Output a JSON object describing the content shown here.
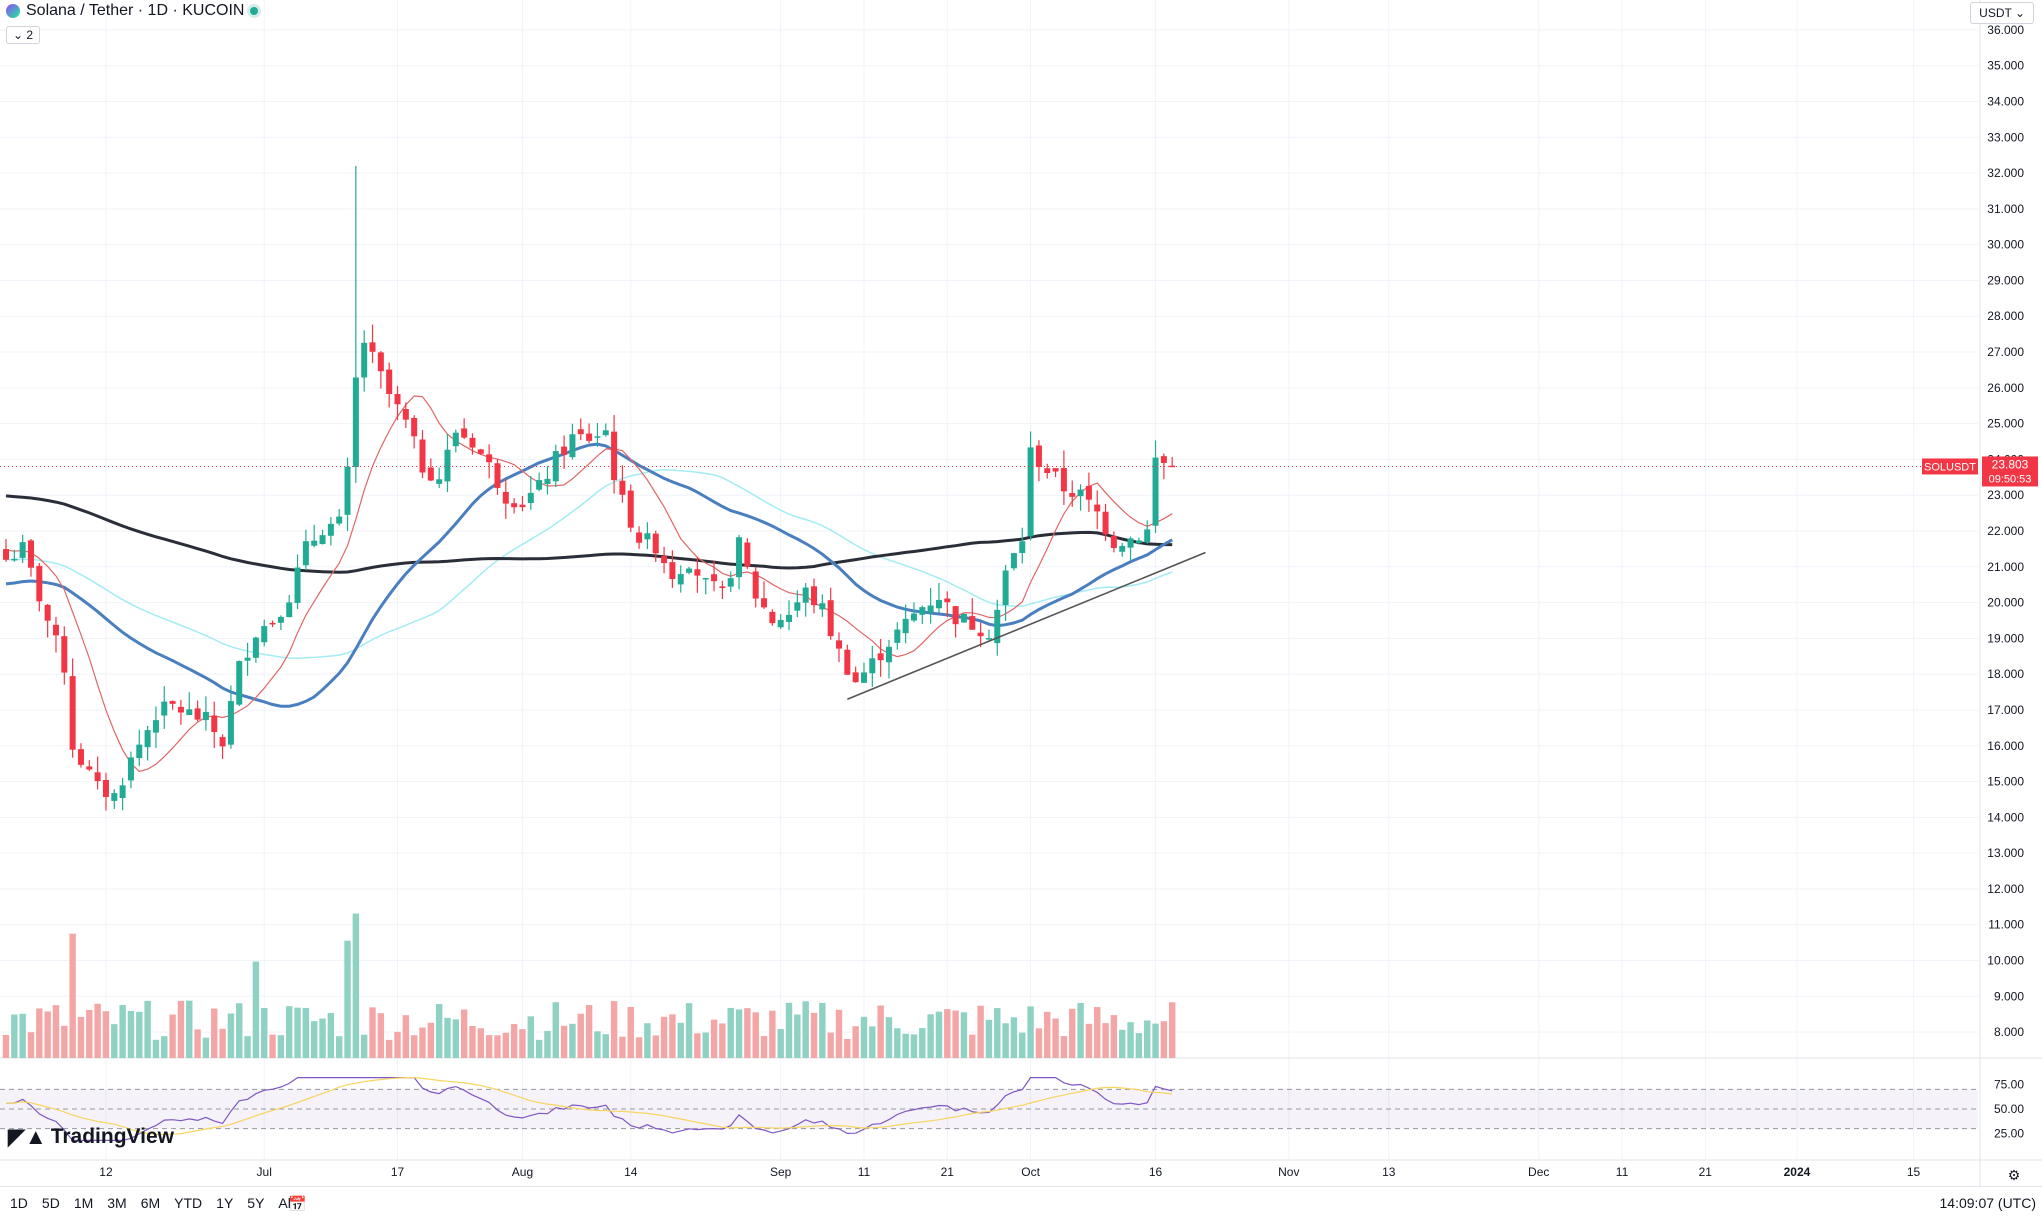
{
  "header": {
    "title": "Solana / Tether · 1D · KUCOIN",
    "collapse_label": "⌄ 2",
    "currency": "USDT ⌄"
  },
  "price_label": {
    "symbol": "SOLUSDT",
    "price": "23.803",
    "countdown": "09:50:53"
  },
  "bottom": {
    "periods": [
      "1D",
      "5D",
      "1M",
      "3M",
      "6M",
      "YTD",
      "1Y",
      "5Y",
      "All"
    ],
    "time": "14:09:07 (UTC)",
    "logo": "TradingView"
  },
  "colors": {
    "up": "#22ab94",
    "down": "#f23645",
    "vol_up": "#8fd1c3",
    "vol_down": "#f4a6a6",
    "ma_short": "#e06666",
    "ma_mid": "#4a7fbf",
    "ma_long": "#2a2e39",
    "ma_cyan": "#a3ecf4",
    "rsi": "#7e57c2",
    "rsi_ma": "#f7d560"
  },
  "chart_data": {
    "type": "candlestick",
    "title": "Solana / Tether · 1D · KUCOIN",
    "ylim": [
      7.5,
      36.5
    ],
    "y_ticks": [
      "8.000",
      "9.000",
      "10.000",
      "11.000",
      "12.000",
      "13.000",
      "14.000",
      "15.000",
      "16.000",
      "17.000",
      "18.000",
      "19.000",
      "20.000",
      "21.000",
      "22.000",
      "23.000",
      "24.000",
      "25.000",
      "26.000",
      "27.000",
      "28.000",
      "29.000",
      "30.000",
      "31.000",
      "32.000",
      "33.000",
      "34.000",
      "35.000",
      "36.000"
    ],
    "x_ticks": [
      {
        "label": "12",
        "day": 12
      },
      {
        "label": "Jul",
        "day": 31
      },
      {
        "label": "17",
        "day": 47
      },
      {
        "label": "Aug",
        "day": 62
      },
      {
        "label": "14",
        "day": 75
      },
      {
        "label": "Sep",
        "day": 93
      },
      {
        "label": "11",
        "day": 103
      },
      {
        "label": "21",
        "day": 113
      },
      {
        "label": "Oct",
        "day": 123
      },
      {
        "label": "16",
        "day": 138
      },
      {
        "label": "Nov",
        "day": 154
      },
      {
        "label": "13",
        "day": 166
      },
      {
        "label": "Dec",
        "day": 184
      },
      {
        "label": "11",
        "day": 194
      },
      {
        "label": "21",
        "day": 204
      },
      {
        "label": "2024",
        "day": 215
      },
      {
        "label": "15",
        "day": 229
      }
    ],
    "ohlc_anchors_close": [
      [
        0,
        21.2
      ],
      [
        2,
        21.5
      ],
      [
        5,
        19.5
      ],
      [
        7,
        18.2
      ],
      [
        8,
        16.0
      ],
      [
        11,
        14.8
      ],
      [
        13,
        14.6
      ],
      [
        15,
        15.6
      ],
      [
        18,
        16.9
      ],
      [
        20,
        17.1
      ],
      [
        24,
        16.7
      ],
      [
        26,
        16.1
      ],
      [
        28,
        18.2
      ],
      [
        30,
        19.2
      ],
      [
        32,
        19.5
      ],
      [
        34,
        20.2
      ],
      [
        36,
        21.5
      ],
      [
        38,
        22.1
      ],
      [
        40,
        22.2
      ],
      [
        41,
        23.6
      ],
      [
        42,
        26.2
      ],
      [
        43,
        27.3
      ],
      [
        44,
        26.8
      ],
      [
        46,
        25.8
      ],
      [
        48,
        25.0
      ],
      [
        50,
        23.8
      ],
      [
        52,
        23.5
      ],
      [
        54,
        24.8
      ],
      [
        56,
        24.5
      ],
      [
        58,
        23.8
      ],
      [
        60,
        23.0
      ],
      [
        62,
        22.8
      ],
      [
        64,
        23.2
      ],
      [
        66,
        24.0
      ],
      [
        68,
        24.6
      ],
      [
        70,
        24.6
      ],
      [
        72,
        24.8
      ],
      [
        73,
        23.6
      ],
      [
        74,
        22.8
      ],
      [
        76,
        21.8
      ],
      [
        78,
        21.6
      ],
      [
        80,
        20.8
      ],
      [
        82,
        21.2
      ],
      [
        84,
        20.5
      ],
      [
        86,
        20.2
      ],
      [
        88,
        21.6
      ],
      [
        90,
        20.2
      ],
      [
        92,
        19.5
      ],
      [
        94,
        19.7
      ],
      [
        96,
        20.3
      ],
      [
        98,
        19.8
      ],
      [
        100,
        18.6
      ],
      [
        102,
        17.8
      ],
      [
        104,
        18.3
      ],
      [
        106,
        18.9
      ],
      [
        108,
        19.4
      ],
      [
        110,
        19.9
      ],
      [
        112,
        20.2
      ],
      [
        114,
        19.6
      ],
      [
        116,
        19.4
      ],
      [
        118,
        19.2
      ],
      [
        119,
        19.8
      ],
      [
        120,
        20.8
      ],
      [
        122,
        21.8
      ],
      [
        123,
        24.2
      ],
      [
        125,
        23.7
      ],
      [
        127,
        23.2
      ],
      [
        129,
        23.0
      ],
      [
        131,
        22.5
      ],
      [
        133,
        21.7
      ],
      [
        135,
        21.8
      ],
      [
        137,
        22.0
      ],
      [
        138,
        24.0
      ],
      [
        139,
        23.9
      ],
      [
        140,
        23.8
      ]
    ],
    "series": [
      {
        "name": "MA short",
        "type": "line"
      },
      {
        "name": "MA 50",
        "type": "line"
      },
      {
        "name": "MA 100",
        "type": "line"
      },
      {
        "name": "MA 200",
        "type": "line"
      },
      {
        "name": "Volume",
        "type": "bar"
      },
      {
        "name": "RSI",
        "type": "line",
        "ylim": [
          0,
          100
        ],
        "ticks": [
          "75.00",
          "50.00",
          "25.00"
        ]
      }
    ],
    "trendline": {
      "from": {
        "day": 101,
        "price": 17.3
      },
      "to": {
        "day": 144,
        "price": 21.4
      }
    },
    "spike": {
      "day": 42,
      "high": 32.2
    }
  }
}
